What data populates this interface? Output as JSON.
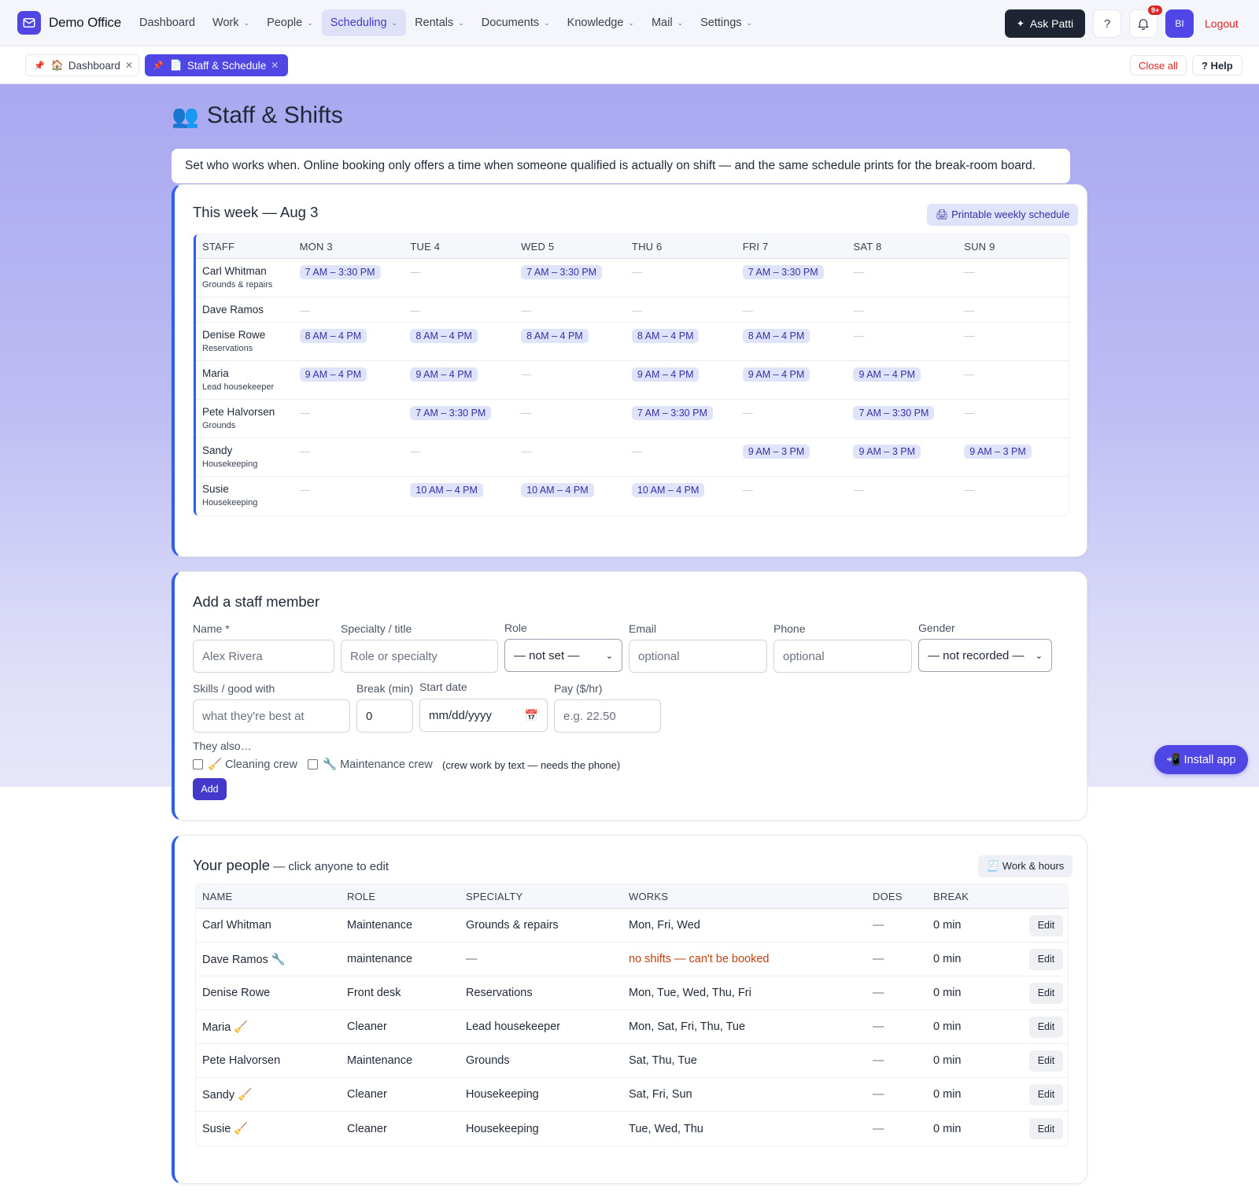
{
  "app": {
    "name": "Demo Office",
    "nav": [
      {
        "label": "Dashboard",
        "dropdown": false,
        "active": false
      },
      {
        "label": "Work",
        "dropdown": true,
        "active": false
      },
      {
        "label": "People",
        "dropdown": true,
        "active": false
      },
      {
        "label": "Scheduling",
        "dropdown": true,
        "active": true
      },
      {
        "label": "Rentals",
        "dropdown": true,
        "active": false
      },
      {
        "label": "Documents",
        "dropdown": true,
        "active": false
      },
      {
        "label": "Knowledge",
        "dropdown": true,
        "active": false
      },
      {
        "label": "Mail",
        "dropdown": true,
        "active": false
      },
      {
        "label": "Settings",
        "dropdown": true,
        "active": false
      }
    ],
    "ask_label": "Ask Patti",
    "help_q": "?",
    "notif_badge": "9+",
    "avatar": "BI",
    "logout": "Logout",
    "accent": "#5046e5"
  },
  "tabs": [
    {
      "icon": "🏠",
      "label": "Dashboard"
    },
    {
      "icon": "📄",
      "label": "Staff & Schedule"
    }
  ],
  "tabbar": {
    "close_all": "Close all",
    "help": "? Help"
  },
  "page": {
    "icon": "👥",
    "title": "Staff & Shifts",
    "intro": "Set who works when. Online booking only offers a time when someone qualified is actually on shift — and the same schedule prints for the break-room board."
  },
  "week": {
    "title": "This week — Aug 3",
    "print_label": "🖨 Printable weekly schedule",
    "columns": [
      "STAFF",
      "MON 3",
      "TUE 4",
      "WED 5",
      "THU 6",
      "FRI 7",
      "SAT 8",
      "SUN 9"
    ],
    "rows": [
      {
        "name": "Carl Whitman",
        "sub": "Grounds & repairs",
        "shifts": [
          "7 AM – 3:30 PM",
          "",
          "7 AM – 3:30 PM",
          "",
          "7 AM – 3:30 PM",
          "",
          ""
        ]
      },
      {
        "name": "Dave Ramos",
        "sub": "",
        "shifts": [
          "",
          "",
          "",
          "",
          "",
          "",
          ""
        ]
      },
      {
        "name": "Denise Rowe",
        "sub": "Reservations",
        "shifts": [
          "8 AM – 4 PM",
          "8 AM – 4 PM",
          "8 AM – 4 PM",
          "8 AM – 4 PM",
          "8 AM – 4 PM",
          "",
          ""
        ]
      },
      {
        "name": "Maria",
        "sub": "Lead housekeeper",
        "shifts": [
          "9 AM – 4 PM",
          "9 AM – 4 PM",
          "",
          "9 AM – 4 PM",
          "9 AM – 4 PM",
          "9 AM – 4 PM",
          ""
        ]
      },
      {
        "name": "Pete Halvorsen",
        "sub": "Grounds",
        "shifts": [
          "",
          "7 AM – 3:30 PM",
          "",
          "7 AM – 3:30 PM",
          "",
          "7 AM – 3:30 PM",
          ""
        ]
      },
      {
        "name": "Sandy",
        "sub": "Housekeeping",
        "shifts": [
          "",
          "",
          "",
          "",
          "9 AM – 3 PM",
          "9 AM – 3 PM",
          "9 AM – 3 PM"
        ]
      },
      {
        "name": "Susie",
        "sub": "Housekeeping",
        "shifts": [
          "",
          "10 AM – 4 PM",
          "10 AM – 4 PM",
          "10 AM – 4 PM",
          "",
          "",
          ""
        ]
      }
    ],
    "empty_mark": "—"
  },
  "add_form": {
    "title": "Add a staff member",
    "name_label": "Name *",
    "name_placeholder": "Alex Rivera",
    "specialty_label": "Specialty / title",
    "specialty_placeholder": "Role or specialty",
    "role_label": "Role",
    "role_value": "— not set —",
    "email_label": "Email",
    "email_placeholder": "optional",
    "phone_label": "Phone",
    "phone_placeholder": "optional",
    "gender_label": "Gender",
    "gender_value": "— not recorded —",
    "skills_label": "Skills / good with",
    "skills_placeholder": "what they're best at",
    "break_label": "Break (min)",
    "break_value": "0",
    "start_label": "Start date",
    "start_placeholder": "mm/dd/yyyy",
    "pay_label": "Pay ($/hr)",
    "pay_placeholder": "e.g. 22.50",
    "also_label": "They also…",
    "cleaning_label": "🧹 Cleaning crew",
    "maint_label": "🔧 Maintenance crew",
    "crew_note": "(crew work by text — needs the phone)",
    "add_label": "Add"
  },
  "install_label": "📲 Install app",
  "people": {
    "title": "Your people",
    "subtitle": " — click anyone to edit",
    "work_label": "🧾 Work & hours",
    "columns": [
      "NAME",
      "ROLE",
      "SPECIALTY",
      "WORKS",
      "DOES",
      "BREAK",
      ""
    ],
    "rows": [
      {
        "name": "Carl Whitman",
        "role": "Maintenance",
        "specialty": "Grounds & repairs",
        "works": "Mon, Fri, Wed",
        "warn": false,
        "does": "—",
        "break": "0 min"
      },
      {
        "name": "Dave Ramos 🔧",
        "role": "maintenance",
        "specialty": "—",
        "works": "no shifts — can't be booked",
        "warn": true,
        "does": "—",
        "break": "0 min"
      },
      {
        "name": "Denise Rowe",
        "role": "Front desk",
        "specialty": "Reservations",
        "works": "Mon, Tue, Wed, Thu, Fri",
        "warn": false,
        "does": "—",
        "break": "0 min"
      },
      {
        "name": "Maria 🧹",
        "role": "Cleaner",
        "specialty": "Lead housekeeper",
        "works": "Mon, Sat, Fri, Thu, Tue",
        "warn": false,
        "does": "—",
        "break": "0 min"
      },
      {
        "name": "Pete Halvorsen",
        "role": "Maintenance",
        "specialty": "Grounds",
        "works": "Sat, Thu, Tue",
        "warn": false,
        "does": "—",
        "break": "0 min"
      },
      {
        "name": "Sandy 🧹",
        "role": "Cleaner",
        "specialty": "Housekeeping",
        "works": "Sat, Fri, Sun",
        "warn": false,
        "does": "—",
        "break": "0 min"
      },
      {
        "name": "Susie 🧹",
        "role": "Cleaner",
        "specialty": "Housekeeping",
        "works": "Tue, Wed, Thu",
        "warn": false,
        "does": "—",
        "break": "0 min"
      }
    ],
    "edit_label": "Edit"
  }
}
